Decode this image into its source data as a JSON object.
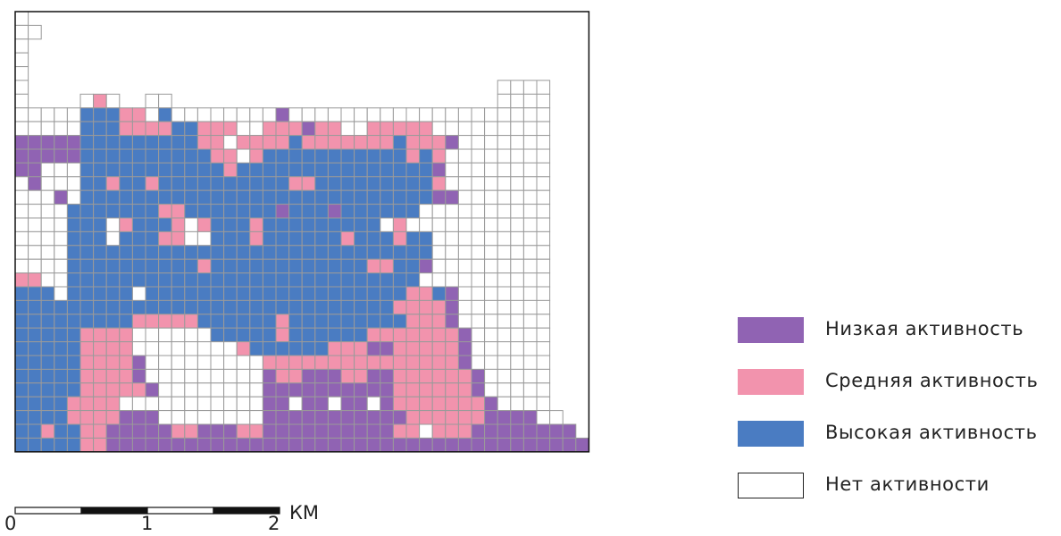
{
  "legend": {
    "items": [
      {
        "key": "low",
        "label": "Низкая активность",
        "color": "#9063b3"
      },
      {
        "key": "medium",
        "label": "Средняя активность",
        "color": "#f293ad"
      },
      {
        "key": "high",
        "label": "Высокая активность",
        "color": "#4a7cc2"
      },
      {
        "key": "none",
        "label": "Нет активности",
        "color": "#ffffff"
      }
    ]
  },
  "scale_bar": {
    "unit": "КМ",
    "ticks": [
      "0",
      "1",
      "2"
    ]
  },
  "grid": {
    "cell_colors": {
      "L": "#9063b3",
      "M": "#f293ad",
      "H": "#4a7cc2",
      "N": "#ffffff"
    },
    "grid_line_color": "#9a9a9a",
    "rows": [
      "N...........................................",
      "NN..........................................",
      "N...........................................",
      "N...........................................",
      "N...........................................",
      "N....................................NNNN...",
      "N....NMN..NN.........................NNNN...",
      "NNNNNHHHMMNHNNNNNNNNLNNNNNNNNNNNNNNNNNNNN...",
      "NNNNNHHHMMMMHHMMMNNMMMLMMNNMMMMMNNNNNNNNN...",
      "LLLLLHHHHHHHHHMMNMMMMHMMMMMMMHMMMLNNNNNNN...",
      "LLLLLHHHHHHHHHHMMNMHHHHHHHHHHHMHMNNNNNNNN...",
      "LLNNNHHHHHHHHHHHMHHHHHHHHHHHHHHHLNNNNNNNN...",
      "NLNNNHHMHHMHHHHHHHHHHMMHHHHHHHHHMNNNNNNNN...",
      "NNNLNHHHHHHHHHHHHHHHHHHHHHHHHHHHLLNNNNNNN...",
      "NNNNHHHHHHHMMHHHHHHHLHHHLHHHHHHNNNNNNNNNN...",
      "NNNNHHHNMHHHMNMHHHMHHHHHHHHHNMNNNNNNNNNNN...",
      "NNNNHHHNHHHMMNNHHHMHHHHHHMHHHMHHNNNNNNNNN...",
      "NNNNHHHHHHHHHHHHHHHHHHHHHHHHHHHHNNNNNNNNN...",
      "NNNNHHHHHHHHHHMHHHHHHHHHHHHMMHHLNNNNNNNNN...",
      "MMNNHHHHHHHHHHHHHHHHHHHHHHHHHHHNNNNNNNNNN...",
      "HHHNHHHHHNHHHHHHHHHHHHHHHHHHHHMMHLNNNNNNN...",
      "HHHHHHHHHHHHHHHHHHHHHHHHHHHHHMMMMLNNNNNNN...",
      "HHHHHHHHHMMMMMHHHHHHMHHHHHHHHHMMMLNNNNNNN...",
      "HHHHHMMMMNNNNNNHHHHHMHHHHHHMMMMMMMLNNNNNN...",
      "HHHHHMMMMNNNNNNNNMHHHHHHMMMLLMMMMMLNNNNNN...",
      "HHHHHMMMMLNNNNNNNNNMMMMMMMMMMMMMMMLNNNNNN...",
      "HHHHHMMMMLNNNNNNNNNLMMLLLMMLLMMMMMMLNNNNN...",
      "HHHHHMMMMMLNNNNNNNNLLLLLLLLLLMMMMMMLNNNNN...",
      "HHHHMMMMNNNNNNNNNNNLLNLLNLLNLMMMMMMMLNNNN...",
      "HHHHMMMMLLLNNNNNNNNLLLLLLLLLLLMMMMMMLLLLNN..",
      "HHMHHMMLLLLLMMLLLMMLLLLLLLLLLMMNMMMLLLLLLLL.",
      "HHHHHMMLLLLLLLLLLLLLLLLLLLLLLLLLLLLLLLLLLLLL"
    ]
  }
}
